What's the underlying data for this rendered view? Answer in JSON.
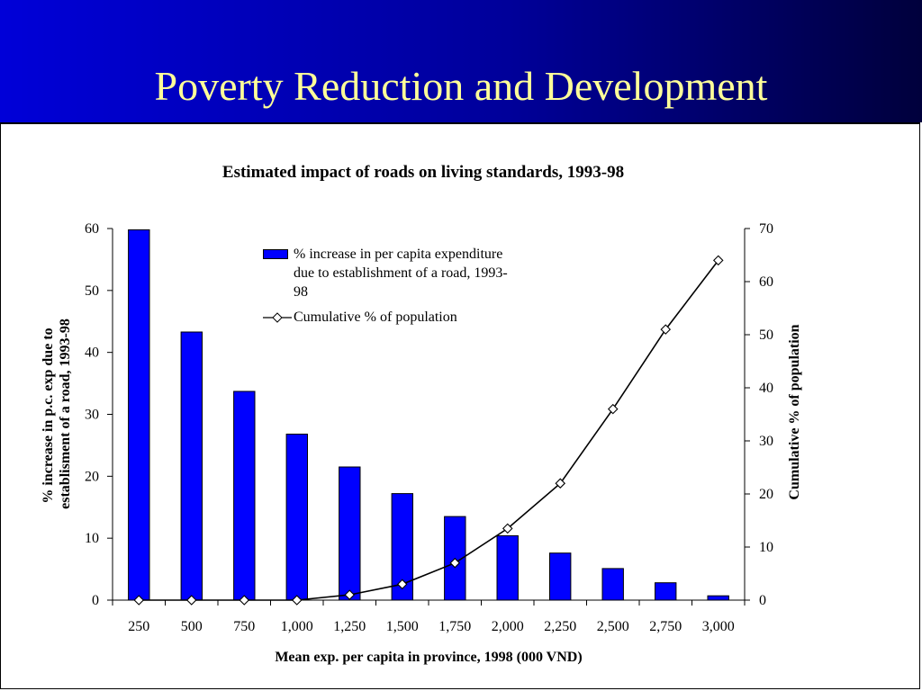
{
  "slide": {
    "title": "Poverty Reduction and Development"
  },
  "colors": {
    "header_gradient_start": "#0000d8",
    "header_gradient_end": "#00003c",
    "title_text": "#ffff99",
    "bar_fill": "#0000ff"
  },
  "chart_data": {
    "type": "bar",
    "title": "Estimated impact of roads on living standards, 1993-98",
    "xlabel": "Mean exp. per capita in province, 1998 (000 VND)",
    "ylabel_left": "% increase in p.c. exp due to establisment of a road, 1993-98",
    "ylabel_right": "Cumulative % of population",
    "categories": [
      "250",
      "500",
      "750",
      "1,000",
      "1,250",
      "1,500",
      "1,750",
      "2,000",
      "2,250",
      "2,500",
      "2,750",
      "3,000"
    ],
    "ylim_left": [
      0,
      60
    ],
    "yticks_left": [
      0,
      10,
      20,
      30,
      40,
      50,
      60
    ],
    "ylim_right": [
      0,
      70
    ],
    "yticks_right": [
      0,
      10,
      20,
      30,
      40,
      50,
      60,
      70
    ],
    "grid": false,
    "legend_position": "top-center",
    "series": [
      {
        "name": "% increase in per capita expenditure due to establishment of a road, 1993-98",
        "type": "bar",
        "axis": "left",
        "color": "#0000ff",
        "values": [
          59.8,
          43.3,
          33.7,
          26.8,
          21.5,
          17.2,
          13.5,
          10.4,
          7.6,
          5.1,
          2.8,
          0.7
        ]
      },
      {
        "name": "Cumulative  % of population",
        "type": "line",
        "axis": "right",
        "color": "#000000",
        "marker": "diamond",
        "values": [
          0,
          0,
          0,
          0,
          1,
          3,
          7,
          13.5,
          22,
          36,
          51,
          64
        ]
      }
    ]
  }
}
